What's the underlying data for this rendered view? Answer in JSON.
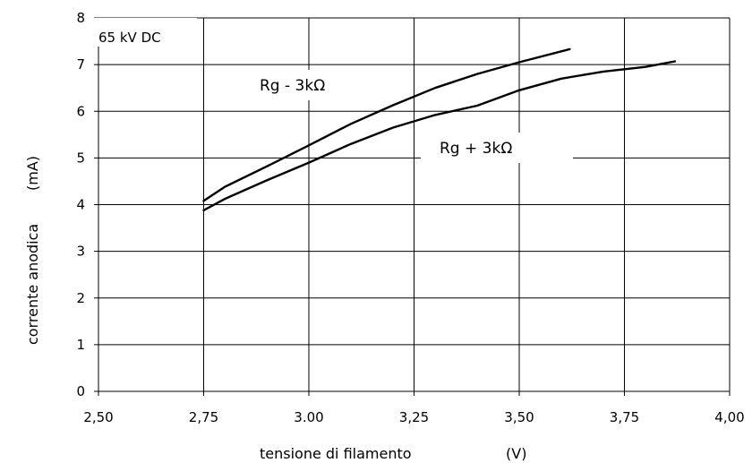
{
  "chart_data": {
    "type": "line",
    "xlabel": "tensione di filamento",
    "xunit": "(V)",
    "ylabel": "corrente anodica",
    "yunit": "(mA)",
    "xlim": [
      2.5,
      4.0
    ],
    "ylim": [
      0,
      8
    ],
    "x_ticks": [
      "2,50",
      "2,75",
      "3.00",
      "3,25",
      "3,50",
      "3,75",
      "4,00"
    ],
    "y_ticks": [
      "0",
      "1",
      "2",
      "3",
      "4",
      "5",
      "6",
      "7",
      "8"
    ],
    "grid": true,
    "corner_label": "65 kV DC",
    "series": [
      {
        "name": "Rg - 3kΩ",
        "x": [
          2.75,
          2.8,
          2.9,
          3.0,
          3.1,
          3.2,
          3.3,
          3.4,
          3.5,
          3.62
        ],
        "y": [
          4.08,
          4.38,
          4.82,
          5.27,
          5.73,
          6.13,
          6.5,
          6.8,
          7.05,
          7.33
        ]
      },
      {
        "name": "Rg + 3kΩ",
        "x": [
          2.75,
          2.8,
          2.9,
          3.0,
          3.1,
          3.2,
          3.3,
          3.4,
          3.5,
          3.6,
          3.7,
          3.8,
          3.87
        ],
        "y": [
          3.88,
          4.12,
          4.52,
          4.9,
          5.3,
          5.65,
          5.92,
          6.12,
          6.45,
          6.7,
          6.85,
          6.95,
          7.07
        ]
      }
    ]
  }
}
